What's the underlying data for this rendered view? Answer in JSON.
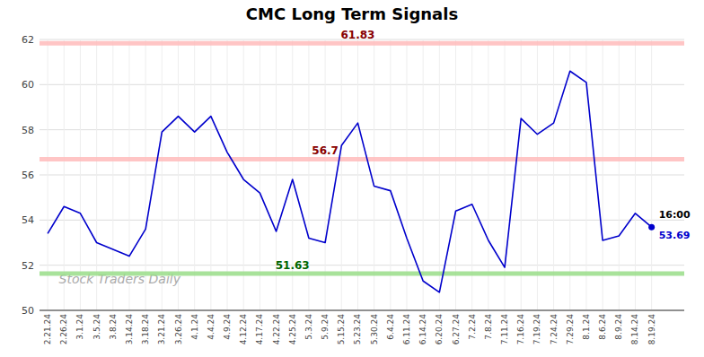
{
  "chart_data": {
    "type": "line",
    "title": "CMC Long Term Signals",
    "watermark": "Stock Traders Daily",
    "categories": [
      "2.21.24",
      "2.26.24",
      "3.1.24",
      "3.5.24",
      "3.8.24",
      "3.14.24",
      "3.18.24",
      "3.21.24",
      "3.26.24",
      "4.1.24",
      "4.4.24",
      "4.9.24",
      "4.12.24",
      "4.17.24",
      "4.22.24",
      "4.25.24",
      "5.3.24",
      "5.9.24",
      "5.15.24",
      "5.23.24",
      "5.30.24",
      "6.4.24",
      "6.11.24",
      "6.14.24",
      "6.20.24",
      "6.27.24",
      "7.2.24",
      "7.8.24",
      "7.11.24",
      "7.16.24",
      "7.19.24",
      "7.24.24",
      "7.29.24",
      "8.1.24",
      "8.6.24",
      "8.9.24",
      "8.14.24",
      "8.19.24"
    ],
    "values": [
      53.4,
      54.6,
      54.3,
      53.0,
      52.7,
      52.4,
      53.6,
      57.9,
      58.6,
      57.9,
      58.6,
      57.0,
      55.8,
      55.2,
      53.5,
      55.8,
      53.2,
      53.0,
      57.3,
      58.3,
      55.5,
      55.3,
      53.2,
      51.3,
      50.8,
      54.4,
      54.7,
      53.1,
      51.9,
      58.5,
      57.8,
      58.3,
      60.6,
      60.1,
      53.1,
      53.3,
      54.3,
      53.69
    ],
    "color": "#0000cc",
    "bands": [
      {
        "value": 61.83,
        "color": "#ffbbbb",
        "label_color": "#880000"
      },
      {
        "value": 56.7,
        "color": "#ffbbbb",
        "label_color": "#880000"
      },
      {
        "value": 51.63,
        "color": "#99dd88",
        "label_color": "#006600"
      }
    ],
    "last_label": "16:00",
    "last_value": 53.69,
    "ylim": [
      50,
      62
    ],
    "yticks": [
      50,
      52,
      54,
      56,
      58,
      60,
      62
    ],
    "grid": true
  }
}
